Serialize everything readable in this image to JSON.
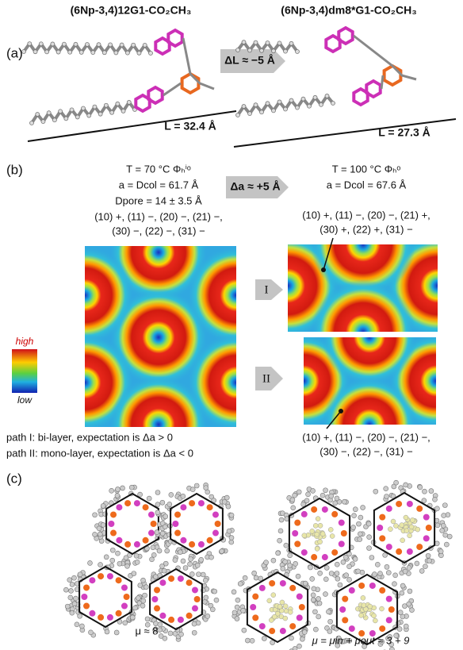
{
  "panel_labels": [
    "(a)",
    "(b)",
    "(c)"
  ],
  "panel_a": {
    "left_title": "(6Np-3,4)12G1-CO₂CH₃",
    "right_title": "(6Np-3,4)dm8*G1-CO₂CH₃",
    "arrow_label": "ΔL ≈ −5 Å",
    "left_length": "L = 32.4 Å",
    "right_length": "L = 27.3 Å"
  },
  "panel_b": {
    "left_header": [
      "T = 70 °C Φₕⁱᵒ",
      "a = Dcol = 61.7 Å",
      "Dpore = 14 ± 3.5 Å",
      "(10) +, (11) −, (20) −, (21) −,",
      "(30) −, (22) −, (31) −"
    ],
    "arrow_label": "Δa ≈ +5 Å",
    "right_header": [
      "T = 100 °C Φₕᵒ",
      "a = Dcol = 67.6 Å"
    ],
    "right_top_signs": [
      "(10) +, (11) −, (20) −, (21) +,",
      "(30) +, (22) +, (31) −"
    ],
    "right_bottom_signs": [
      "(10) +, (11) −, (20) −, (21) −,",
      "(30) −, (22) −, (31) −"
    ],
    "colorbar": {
      "high": "high",
      "low": "low"
    },
    "paths": [
      "I",
      "II"
    ],
    "path_notes": [
      "path I: bi-layer, expectation is Δa > 0",
      "path II: mono-layer, expectation is Δa < 0"
    ]
  },
  "panel_c": {
    "left_label": "μ ≈ 8",
    "right_label": "μ = μin + μout ≈ 3 + 9"
  }
}
